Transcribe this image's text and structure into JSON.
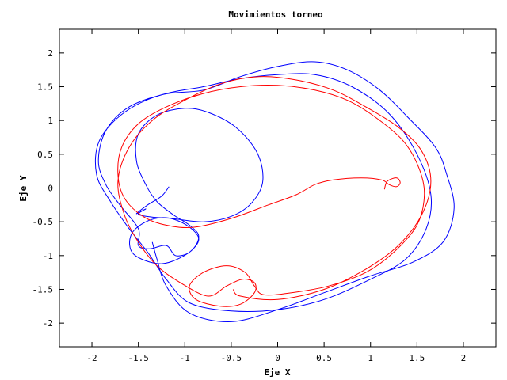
{
  "chart_data": {
    "type": "line",
    "title": "Movimientos torneo",
    "xlabel": "Eje X",
    "ylabel": "Eje Y",
    "xlim": [
      -2.35,
      2.35
    ],
    "ylim": [
      -2.35,
      2.35
    ],
    "x_ticks": [
      {
        "value": -2,
        "label": "-2"
      },
      {
        "value": -1.5,
        "label": "-1.5"
      },
      {
        "value": -1,
        "label": "-1"
      },
      {
        "value": -0.5,
        "label": "-0.5"
      },
      {
        "value": 0,
        "label": "0"
      },
      {
        "value": 0.5,
        "label": "0.5"
      },
      {
        "value": 1,
        "label": "1"
      },
      {
        "value": 1.5,
        "label": "1.5"
      },
      {
        "value": 2,
        "label": "2"
      }
    ],
    "y_ticks": [
      {
        "value": 2,
        "label": "2"
      },
      {
        "value": 1.5,
        "label": "1.5"
      },
      {
        "value": 1,
        "label": "1"
      },
      {
        "value": 0.5,
        "label": "0.5"
      },
      {
        "value": 0,
        "label": "0"
      },
      {
        "value": -0.5,
        "label": "-0.5"
      },
      {
        "value": -1,
        "label": "-1"
      },
      {
        "value": -1.5,
        "label": "-1.5"
      },
      {
        "value": -2,
        "label": "-2"
      }
    ],
    "grid": false,
    "legend": "none",
    "series": [
      {
        "color": "#0000ff",
        "points": [
          [
            -1.17,
            0.02
          ],
          [
            -1.25,
            -0.12
          ],
          [
            -1.4,
            -0.25
          ],
          [
            -1.52,
            -0.38
          ],
          [
            -1.42,
            -0.31
          ],
          [
            -1.5,
            -0.39
          ],
          [
            -1.35,
            -0.43
          ],
          [
            -1.15,
            -0.45
          ],
          [
            -0.8,
            -0.5
          ],
          [
            -0.5,
            -0.42
          ],
          [
            -0.28,
            -0.22
          ],
          [
            -0.16,
            0.1
          ],
          [
            -0.22,
            0.52
          ],
          [
            -0.45,
            0.9
          ],
          [
            -0.75,
            1.12
          ],
          [
            -1.0,
            1.18
          ],
          [
            -1.3,
            1.08
          ],
          [
            -1.5,
            0.8
          ],
          [
            -1.52,
            0.4
          ],
          [
            -1.42,
            0.05
          ],
          [
            -1.3,
            -0.2
          ],
          [
            -1.12,
            -0.4
          ],
          [
            -0.95,
            -0.55
          ],
          [
            -0.85,
            -0.72
          ],
          [
            -0.95,
            -0.95
          ],
          [
            -1.25,
            -1.12
          ],
          [
            -1.55,
            -0.98
          ],
          [
            -1.58,
            -0.7
          ],
          [
            -1.42,
            -0.5
          ],
          [
            -1.2,
            -0.44
          ],
          [
            -0.98,
            -0.55
          ],
          [
            -0.85,
            -0.75
          ],
          [
            -0.95,
            -0.95
          ],
          [
            -1.1,
            -1.0
          ],
          [
            -1.2,
            -0.85
          ],
          [
            -1.38,
            -0.9
          ],
          [
            -1.5,
            -0.85
          ],
          [
            -1.5,
            -0.6
          ],
          [
            -1.7,
            -0.25
          ],
          [
            -1.85,
            0.05
          ],
          [
            -1.93,
            0.4
          ],
          [
            -1.85,
            0.85
          ],
          [
            -1.6,
            1.2
          ],
          [
            -1.2,
            1.4
          ],
          [
            -0.8,
            1.5
          ],
          [
            -0.4,
            1.62
          ],
          [
            0.0,
            1.68
          ],
          [
            0.4,
            1.68
          ],
          [
            0.8,
            1.5
          ],
          [
            1.2,
            1.1
          ],
          [
            1.5,
            0.5
          ],
          [
            1.65,
            -0.1
          ],
          [
            1.6,
            -0.6
          ],
          [
            1.38,
            -1.05
          ],
          [
            1.0,
            -1.35
          ],
          [
            0.5,
            -1.65
          ],
          [
            0.0,
            -1.8
          ],
          [
            -0.5,
            -1.82
          ],
          [
            -0.95,
            -1.7
          ],
          [
            -1.2,
            -1.35
          ],
          [
            -1.4,
            -0.95
          ],
          [
            -1.6,
            -0.6
          ],
          [
            -1.8,
            -0.2
          ],
          [
            -1.95,
            0.2
          ],
          [
            -1.92,
            0.7
          ],
          [
            -1.65,
            1.12
          ],
          [
            -1.25,
            1.38
          ],
          [
            -0.8,
            1.45
          ],
          [
            -0.4,
            1.65
          ],
          [
            0.0,
            1.8
          ],
          [
            0.4,
            1.87
          ],
          [
            0.75,
            1.75
          ],
          [
            1.1,
            1.45
          ],
          [
            1.4,
            1.05
          ],
          [
            1.7,
            0.6
          ],
          [
            1.82,
            0.2
          ],
          [
            1.9,
            -0.3
          ],
          [
            1.78,
            -0.8
          ],
          [
            1.45,
            -1.1
          ],
          [
            1.0,
            -1.3
          ],
          [
            0.5,
            -1.55
          ],
          [
            0.0,
            -1.8
          ],
          [
            -0.5,
            -1.98
          ],
          [
            -0.95,
            -1.85
          ],
          [
            -1.2,
            -1.45
          ],
          [
            -1.3,
            -1.05
          ],
          [
            -1.35,
            -0.8
          ]
        ]
      },
      {
        "color": "#ff0000",
        "points": [
          [
            1.15,
            -0.02
          ],
          [
            1.18,
            0.1
          ],
          [
            1.28,
            0.15
          ],
          [
            1.32,
            0.08
          ],
          [
            1.28,
            0.02
          ],
          [
            1.2,
            0.05
          ],
          [
            1.12,
            0.12
          ],
          [
            0.9,
            0.15
          ],
          [
            0.6,
            0.12
          ],
          [
            0.4,
            0.05
          ],
          [
            0.2,
            -0.1
          ],
          [
            -0.1,
            -0.25
          ],
          [
            -0.5,
            -0.45
          ],
          [
            -0.9,
            -0.58
          ],
          [
            -1.2,
            -0.55
          ],
          [
            -1.45,
            -0.42
          ],
          [
            -1.65,
            -0.15
          ],
          [
            -1.72,
            0.2
          ],
          [
            -1.68,
            0.6
          ],
          [
            -1.5,
            0.95
          ],
          [
            -1.2,
            1.2
          ],
          [
            -0.8,
            1.4
          ],
          [
            -0.4,
            1.5
          ],
          [
            0.0,
            1.52
          ],
          [
            0.4,
            1.45
          ],
          [
            0.75,
            1.3
          ],
          [
            1.05,
            1.05
          ],
          [
            1.35,
            0.7
          ],
          [
            1.52,
            0.3
          ],
          [
            1.58,
            -0.1
          ],
          [
            1.5,
            -0.55
          ],
          [
            1.25,
            -0.95
          ],
          [
            0.95,
            -1.25
          ],
          [
            0.55,
            -1.45
          ],
          [
            0.15,
            -1.55
          ],
          [
            -0.15,
            -1.58
          ],
          [
            -0.25,
            -1.45
          ],
          [
            -0.35,
            -1.25
          ],
          [
            -0.55,
            -1.15
          ],
          [
            -0.8,
            -1.25
          ],
          [
            -0.95,
            -1.45
          ],
          [
            -0.88,
            -1.65
          ],
          [
            -0.62,
            -1.75
          ],
          [
            -0.4,
            -1.72
          ],
          [
            -0.25,
            -1.55
          ],
          [
            -0.25,
            -1.4
          ],
          [
            -0.38,
            -1.35
          ],
          [
            -0.55,
            -1.45
          ],
          [
            -0.75,
            -1.6
          ],
          [
            -1.05,
            -1.4
          ],
          [
            -1.3,
            -1.15
          ],
          [
            -1.5,
            -0.8
          ],
          [
            -1.65,
            -0.4
          ],
          [
            -1.72,
            0.1
          ],
          [
            -1.6,
            0.6
          ],
          [
            -1.35,
            1.0
          ],
          [
            -1.0,
            1.3
          ],
          [
            -0.6,
            1.55
          ],
          [
            -0.2,
            1.65
          ],
          [
            0.2,
            1.6
          ],
          [
            0.6,
            1.45
          ],
          [
            0.95,
            1.2
          ],
          [
            1.3,
            0.9
          ],
          [
            1.55,
            0.55
          ],
          [
            1.65,
            0.1
          ],
          [
            1.55,
            -0.4
          ],
          [
            1.3,
            -0.85
          ],
          [
            0.95,
            -1.2
          ],
          [
            0.5,
            -1.5
          ],
          [
            0.0,
            -1.65
          ],
          [
            -0.4,
            -1.6
          ],
          [
            -0.48,
            -1.5
          ]
        ]
      }
    ]
  }
}
